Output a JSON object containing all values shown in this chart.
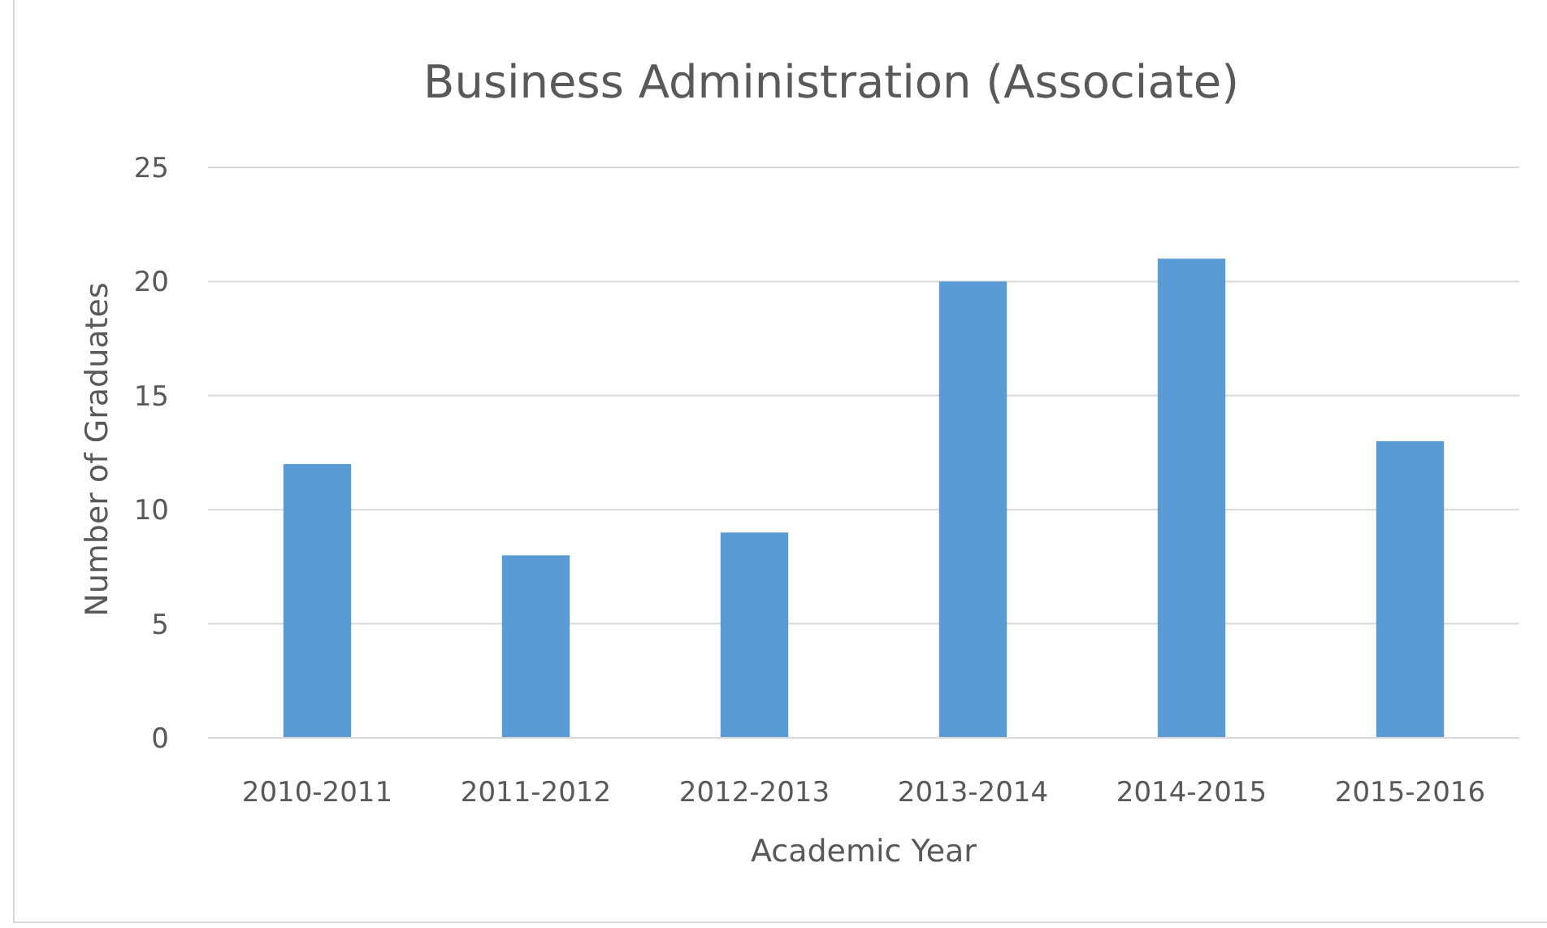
{
  "chart_data": {
    "type": "bar",
    "title": "Business Administration (Associate)",
    "xlabel": "Academic Year",
    "ylabel": "Number of Graduates",
    "categories": [
      "2010-2011",
      "2011-2012",
      "2012-2013",
      "2013-2014",
      "2014-2015",
      "2015-2016"
    ],
    "values": [
      12,
      8,
      9,
      20,
      21,
      13
    ],
    "color": "#5b9bd5",
    "ylim": [
      0,
      25
    ],
    "yticks": [
      0,
      5,
      10,
      15,
      20,
      25
    ],
    "grid": "y"
  }
}
